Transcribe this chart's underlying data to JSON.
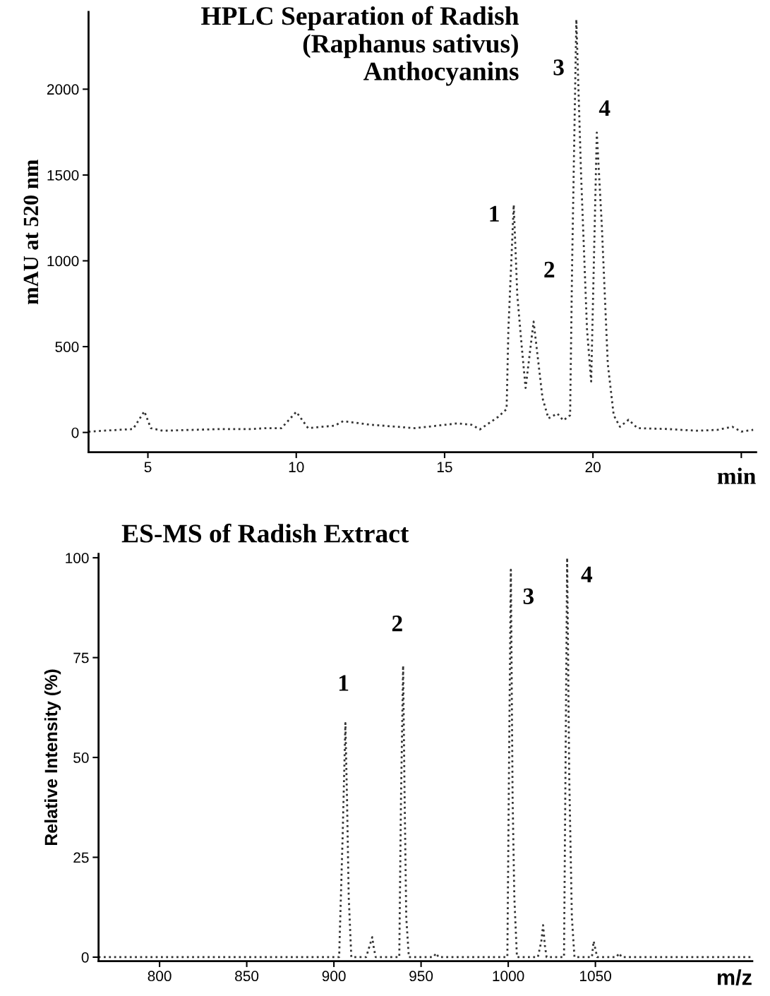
{
  "chart_data": [
    {
      "type": "line",
      "title": "HPLC Separation of Radish\n(Raphanus sativus)\nAnthocyanins",
      "xlabel": "min",
      "ylabel": "mAU at 520 nm",
      "line_style": "dotted",
      "marker": "none",
      "grid": false,
      "legend": false,
      "xlim": [
        3,
        25.5
      ],
      "ylim": [
        -115,
        2450
      ],
      "xticks": [
        5,
        10,
        15,
        20,
        {
          "value": 25,
          "label": null
        }
      ],
      "yticks": [
        0,
        500,
        1000,
        1500,
        2000
      ],
      "series": [
        {
          "color": "#333333",
          "x": [
            3.0,
            3.5,
            4.5,
            4.88,
            5.1,
            5.5,
            7.5,
            8.5,
            9.0,
            9.5,
            10.0,
            10.4,
            11.3,
            11.58,
            12.5,
            14.0,
            15.45,
            15.9,
            16.19,
            16.8,
            17.09,
            17.15,
            17.33,
            17.45,
            17.6,
            17.73,
            18.0,
            18.3,
            18.5,
            18.8,
            19.0,
            19.23,
            19.3,
            19.44,
            19.6,
            19.8,
            19.94,
            20.13,
            20.3,
            20.5,
            20.7,
            20.91,
            21.2,
            21.5,
            22.5,
            23.5,
            24.2,
            24.7,
            25.0,
            25.4
          ],
          "values": [
            4,
            10,
            20,
            123,
            25,
            10,
            20,
            20,
            25,
            25,
            120,
            25,
            40,
            66,
            45,
            25,
            53,
            45,
            18,
            90,
            136,
            600,
            1326,
            800,
            500,
            259,
            646,
            200,
            82,
            110,
            70,
            100,
            1000,
            2407,
            1500,
            600,
            297,
            1747,
            1200,
            400,
            100,
            33,
            74,
            25,
            20,
            10,
            15,
            33,
            5,
            15
          ]
        }
      ],
      "annotations": [
        {
          "text": "1",
          "x": 17.33,
          "y": 1326
        },
        {
          "text": "2",
          "x": 18.0,
          "y": 646
        },
        {
          "text": "3",
          "x": 19.44,
          "y": 2407
        },
        {
          "text": "4",
          "x": 20.13,
          "y": 1747
        }
      ]
    },
    {
      "type": "line",
      "title": "ES-MS of Radish Extract",
      "xlabel": "m/z",
      "ylabel": "Relative Intensity (%)",
      "line_style": "dotted",
      "marker": "none",
      "grid": false,
      "legend": false,
      "xlim": [
        765,
        1140
      ],
      "ylim": [
        -1,
        101
      ],
      "xticks": [
        800,
        850,
        900,
        950,
        1000,
        1050
      ],
      "yticks": [
        0,
        25,
        50,
        75,
        100
      ],
      "series": [
        {
          "color": "#333333",
          "x": [
            765,
            903,
            905,
            906.6,
            907.5,
            908.5,
            910,
            918.5,
            922,
            923,
            924,
            937.5,
            938.5,
            939.7,
            940.5,
            941.5,
            943,
            957,
            958.7,
            960,
            999.5,
            1000.5,
            1001.5,
            1002.5,
            1003.5,
            1005,
            1017,
            1019,
            1020,
            1021,
            1022,
            1032,
            1033,
            1033.8,
            1035,
            1036.5,
            1038,
            1048,
            1049,
            1050,
            1051,
            1062,
            1063.7,
            1065,
            1140
          ],
          "values": [
            0,
            0,
            30,
            58.6,
            40,
            15,
            0,
            0,
            5,
            2,
            0,
            0,
            40,
            73,
            42,
            10,
            0,
            0,
            1,
            0,
            0,
            50,
            97,
            40,
            15,
            0,
            0,
            4,
            8,
            3,
            0,
            0,
            55,
            100,
            45,
            10,
            0,
            0,
            4,
            2,
            0,
            0,
            1,
            0,
            0
          ]
        }
      ],
      "annotations": [
        {
          "text": "1",
          "x": 906.6,
          "y": 58.6
        },
        {
          "text": "2",
          "x": 939.7,
          "y": 73
        },
        {
          "text": "3",
          "x": 1001.5,
          "y": 97
        },
        {
          "text": "4",
          "x": 1033.8,
          "y": 100
        }
      ]
    }
  ]
}
